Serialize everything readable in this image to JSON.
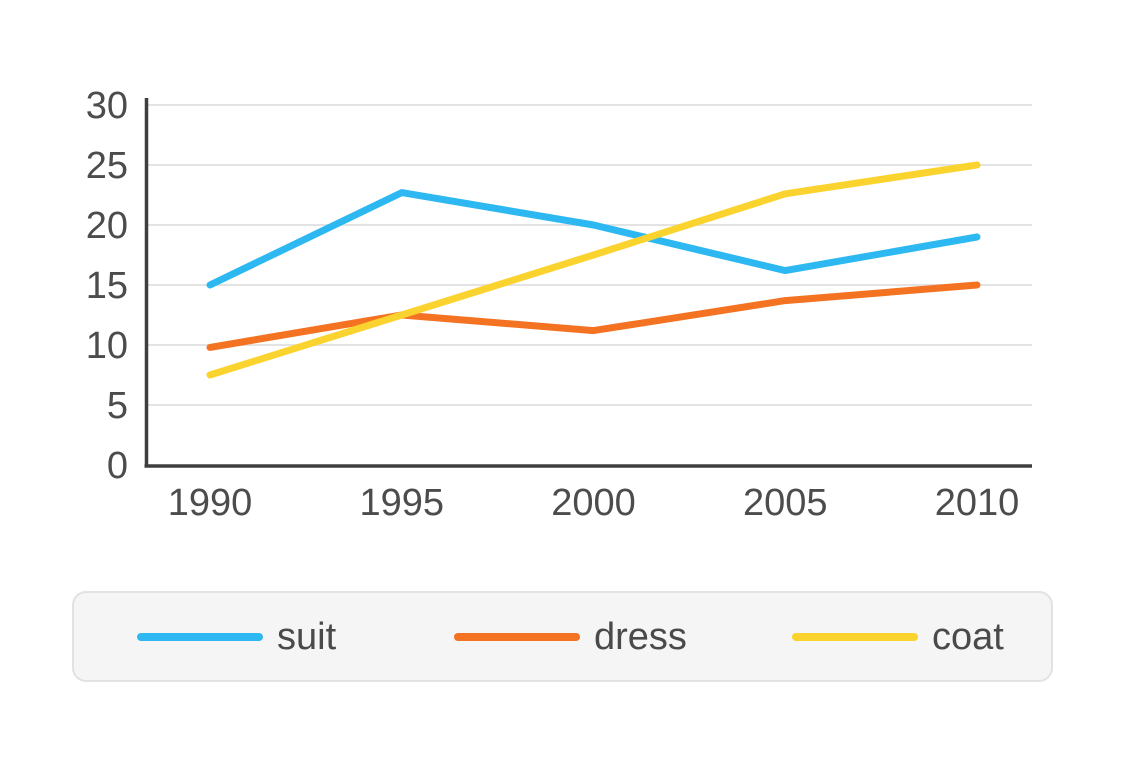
{
  "chart_data": {
    "type": "line",
    "title": "",
    "xlabel": "",
    "ylabel": "",
    "categories": [
      "1990",
      "1995",
      "2000",
      "2005",
      "2010"
    ],
    "series": [
      {
        "name": "suit",
        "color": "#2eb8f2",
        "values": [
          15,
          22.7,
          20,
          16.2,
          19
        ]
      },
      {
        "name": "dress",
        "color": "#f47322",
        "values": [
          9.8,
          12.5,
          11.2,
          13.7,
          15
        ]
      },
      {
        "name": "coat",
        "color": "#fbd32f",
        "values": [
          7.5,
          12.5,
          17.5,
          22.6,
          25
        ]
      }
    ],
    "ylim": [
      0,
      30
    ],
    "y_ticks": [
      0,
      5,
      10,
      15,
      20,
      25,
      30
    ],
    "grid": "horizontal",
    "legend_position": "bottom",
    "style": {
      "axis_color": "#3e3e3e",
      "grid_color": "#e3e3e3",
      "tick_text_color": "#4c4c4c",
      "legend_bg": "#f5f5f5",
      "legend_border": "#e2e2e2",
      "legend_text_color": "#4a4a4a",
      "background": "#ffffff"
    }
  }
}
